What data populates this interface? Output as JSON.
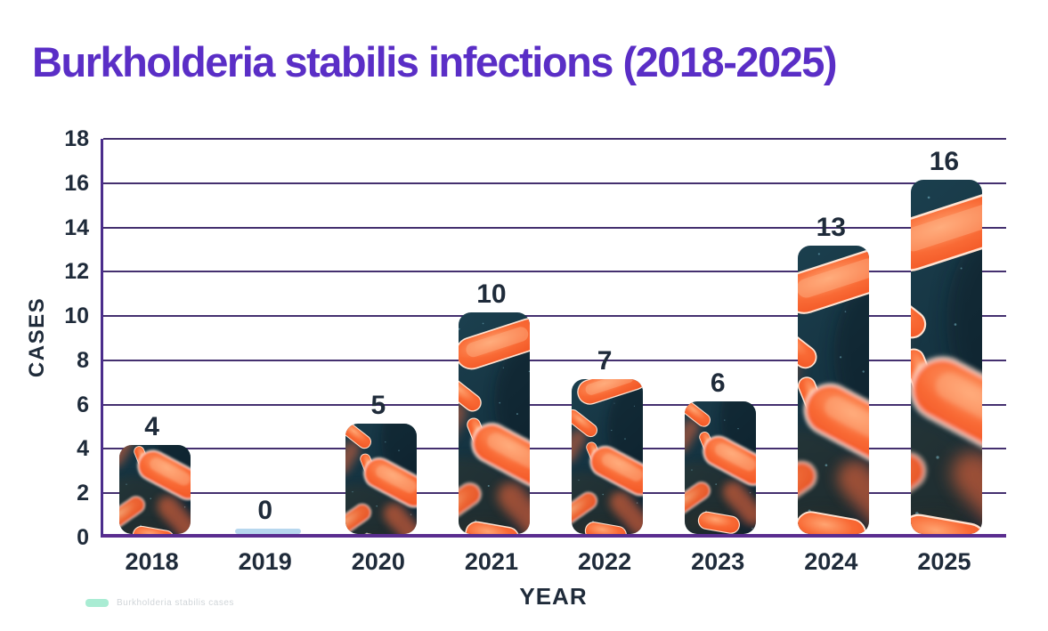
{
  "title": "Burkholderia stabilis infections (2018-2025)",
  "legend": {
    "label": "Burkholderia stabilis cases",
    "swatch_color": "#a9ecd3"
  },
  "chart_data": {
    "type": "bar",
    "title": "Burkholderia stabilis infections (2018-2025)",
    "categories": [
      "2018",
      "2019",
      "2020",
      "2021",
      "2022",
      "2023",
      "2024",
      "2025"
    ],
    "values": [
      4,
      0,
      5,
      10,
      7,
      6,
      13,
      16
    ],
    "xlabel": "YEAR",
    "ylabel": "CASES",
    "ylim": [
      0,
      18
    ],
    "yticks": [
      0,
      2,
      4,
      6,
      8,
      10,
      12,
      14,
      16,
      18
    ],
    "grid": "horizontal",
    "legend_position": "bottom-left",
    "bar_fill": "bacteria-photo-texture",
    "texture_offsets": [
      55,
      0,
      30,
      0,
      15,
      45,
      5,
      0
    ]
  },
  "colors": {
    "title": "#5a2ec6",
    "gridline": "#44306f",
    "y_axis": "#4b2d8c",
    "x_axis": "#5a2d8f",
    "tick_label": "#1f2b3a",
    "value_label": "#1f2b3a",
    "zero_bar": "#b7d7ee",
    "texture_bg_dark": "#0d2331",
    "texture_bg_teal": "#1c4150",
    "texture_orange": "#f9602c",
    "legend_swatch": "#a9ecd3",
    "page_bg": "#ffffff"
  }
}
